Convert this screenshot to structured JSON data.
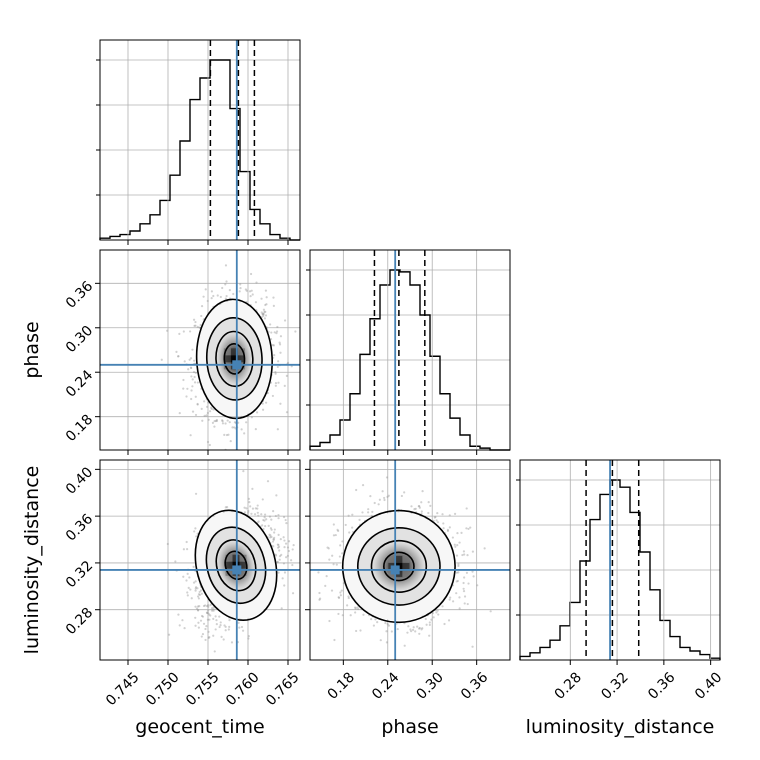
{
  "chart_data": {
    "type": "corner",
    "parameters": [
      {
        "name": "geocent_time",
        "label": "geocent_time",
        "range": [
          0.7415,
          0.7665
        ],
        "ticks": [
          0.745,
          0.75,
          0.755,
          0.76,
          0.765
        ],
        "tick_labels": [
          "0.745",
          "0.750",
          "0.755",
          "0.760",
          "0.765"
        ],
        "truth": 0.7586,
        "quantiles": [
          0.7553,
          0.7588,
          0.7608
        ],
        "hist_bins": 20,
        "hist_counts": [
          1,
          2,
          3,
          5,
          9,
          14,
          22,
          36,
          55,
          78,
          90,
          100,
          100,
          73,
          38,
          17,
          9,
          3,
          1,
          0
        ]
      },
      {
        "name": "phase",
        "label": "phase",
        "range": [
          0.135,
          0.405
        ],
        "ticks": [
          0.18,
          0.24,
          0.3,
          0.36
        ],
        "tick_labels": [
          "0.18",
          "0.24",
          "0.30",
          "0.36"
        ],
        "truth": 0.25,
        "quantiles": [
          0.222,
          0.255,
          0.29
        ],
        "hist_bins": 20,
        "hist_counts": [
          2,
          4,
          8,
          16,
          30,
          51,
          70,
          88,
          96,
          95,
          88,
          72,
          50,
          30,
          17,
          8,
          2,
          1,
          0,
          0
        ]
      },
      {
        "name": "luminosity_distance",
        "label": "luminosity_distance",
        "range": [
          0.237,
          0.408
        ],
        "ticks": [
          0.28,
          0.32,
          0.36,
          0.4
        ],
        "tick_labels": [
          "0.28",
          "0.32",
          "0.36",
          "0.40"
        ],
        "truth": 0.314,
        "quantiles": [
          0.2935,
          0.316,
          0.3385
        ],
        "hist_bins": 20,
        "hist_counts": [
          2,
          4,
          7,
          11,
          19,
          32,
          55,
          78,
          92,
          100,
          96,
          82,
          60,
          39,
          22,
          13,
          7,
          5,
          3,
          1
        ]
      }
    ],
    "pairs": [
      {
        "x": "geocent_time",
        "y": "phase",
        "mean": [
          0.7583,
          0.258
        ],
        "sd": [
          0.0023,
          0.037
        ],
        "rho": 0.05
      },
      {
        "x": "geocent_time",
        "y": "luminosity_distance",
        "mean": [
          0.7585,
          0.318
        ],
        "sd": [
          0.0024,
          0.022
        ],
        "rho": 0.35
      },
      {
        "x": "phase",
        "y": "luminosity_distance",
        "mean": [
          0.255,
          0.317
        ],
        "sd": [
          0.037,
          0.022
        ],
        "rho": 0.02
      }
    ],
    "contour_levels": 4,
    "grid": true,
    "colors": {
      "truth": "#4682b4",
      "hist": "#000000",
      "quantile": "#000000",
      "grid": "#b0b0b0",
      "density_dark": "#000000",
      "density_light": "#ffffff",
      "points": "#9a9a9a"
    }
  }
}
